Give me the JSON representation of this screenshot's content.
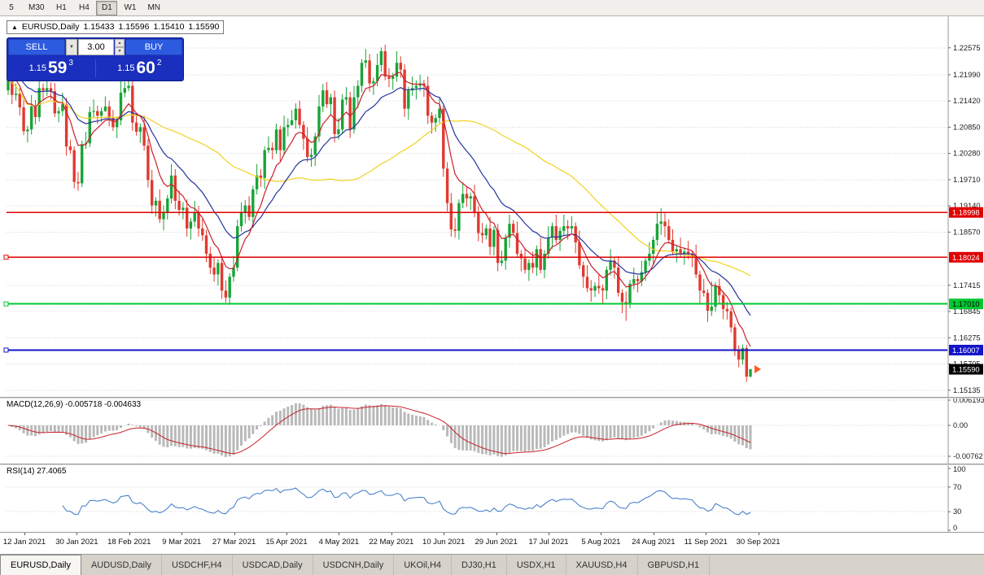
{
  "toolbar": {
    "timeframes": [
      {
        "label": "5",
        "active": false
      },
      {
        "label": "M30",
        "active": false
      },
      {
        "label": "H1",
        "active": false
      },
      {
        "label": "H4",
        "active": false
      },
      {
        "label": "D1",
        "active": true
      },
      {
        "label": "W1",
        "active": false
      },
      {
        "label": "MN",
        "active": false
      }
    ]
  },
  "header": {
    "collapse_arrow": "▲",
    "symbol": "EURUSD,Daily",
    "open": "1.15433",
    "high": "1.15596",
    "low": "1.15410",
    "close": "1.15590"
  },
  "trade_panel": {
    "sell_label": "SELL",
    "buy_label": "BUY",
    "lot_size": "3.00",
    "dropdown_arrow": "▼",
    "spin_up": "▲",
    "spin_down": "▼",
    "sell_price_prefix": "1.15",
    "sell_price_big": "59",
    "sell_price_sup": "3",
    "buy_price_prefix": "1.15",
    "buy_price_big": "60",
    "buy_price_sup": "2"
  },
  "colors": {
    "bull": "#18a437",
    "bear": "#e03a30",
    "grid": "#d4d4d4",
    "axis_text": "#1a1a1a"
  },
  "tabs": [
    {
      "label": "EURUSD,Daily",
      "active": true
    },
    {
      "label": "AUDUSD,Daily",
      "active": false
    },
    {
      "label": "USDCHF,H4",
      "active": false
    },
    {
      "label": "USDCAD,Daily",
      "active": false
    },
    {
      "label": "USDCNH,Daily",
      "active": false
    },
    {
      "label": "UKOil,H4",
      "active": false
    },
    {
      "label": "DJ30,H1",
      "active": false
    },
    {
      "label": "USDX,H1",
      "active": false
    },
    {
      "label": "XAUUSD,H4",
      "active": false
    },
    {
      "label": "GBPUSD,H1",
      "active": false
    }
  ],
  "chart_data": {
    "type": "candlestick",
    "title": "EURUSD,Daily",
    "symbol": "EURUSD",
    "timeframe": "Daily",
    "ylim": [
      1.1499,
      1.2326
    ],
    "y_ticks": [
      "1.22575",
      "1.21990",
      "1.21420",
      "1.20850",
      "1.20280",
      "1.19710",
      "1.19140",
      "1.18570",
      "1.17415",
      "1.16845",
      "1.16275",
      "1.15705",
      "1.15135"
    ],
    "x_labels": [
      "12 Jan 2021",
      "30 Jan 2021",
      "18 Feb 2021",
      "9 Mar 2021",
      "27 Mar 2021",
      "15 Apr 2021",
      "4 May 2021",
      "22 May 2021",
      "10 Jun 2021",
      "29 Jun 2021",
      "17 Jul 2021",
      "5 Aug 2021",
      "24 Aug 2021",
      "11 Sep 2021",
      "30 Sep 2021"
    ],
    "hlines": [
      {
        "label": "1.18998",
        "value": 1.18998,
        "color": "#e00000",
        "width": 1.4,
        "handle": false
      },
      {
        "label": "1.18024",
        "value": 1.18024,
        "color": "#e00000",
        "width": 1.4,
        "handle": true
      },
      {
        "label": "1.17010",
        "value": 1.1701,
        "color": "#00c832",
        "width": 2,
        "handle": true,
        "tag_text": "#000000"
      },
      {
        "label": "1.16007",
        "value": 1.16007,
        "color": "#1414c8",
        "width": 2,
        "handle": true
      }
    ],
    "current_price": {
      "label": "1.15590",
      "value": 1.1559,
      "color": "#000000"
    },
    "marker": {
      "type": "arrow",
      "price": 1.1559,
      "color": "#ff5a26"
    },
    "moving_averages": [
      {
        "name": "ma-slow-yellow",
        "period": 55,
        "method": "sma",
        "color": "#f2d21f"
      },
      {
        "name": "ma-mid-blue",
        "period": 20,
        "method": "ema",
        "color": "#27349c"
      },
      {
        "name": "ma-fast-red",
        "period": 8,
        "method": "ema",
        "color": "#c8202a"
      }
    ],
    "indicator_panes": [
      {
        "name": "MACD",
        "label": "MACD(12,26,9) -0.005718 -0.004633",
        "params": [
          12,
          26,
          9
        ],
        "values": [
          -0.005718,
          -0.004633
        ],
        "axis_labels": [
          "0.006193",
          "0.00",
          "-0.00762"
        ],
        "colors": {
          "histogram": "#b9b9b9",
          "signal": "#c8202a"
        }
      },
      {
        "name": "RSI",
        "label": "RSI(14) 27.4065",
        "period": 14,
        "value": 27.4065,
        "axis_labels": [
          "100",
          "70",
          "30",
          "0"
        ],
        "levels": [
          70,
          30
        ],
        "color": "#3c78c8"
      }
    ],
    "candles": [
      [
        1.2165,
        1.2223,
        1.2155,
        1.2208
      ],
      [
        1.2208,
        1.2218,
        1.2135,
        1.2155
      ],
      [
        1.2155,
        1.218,
        1.2143,
        1.2158
      ],
      [
        1.2158,
        1.217,
        1.211,
        1.2128
      ],
      [
        1.2128,
        1.2146,
        1.2068,
        1.2076
      ],
      [
        1.2076,
        1.2088,
        1.2052,
        1.208
      ],
      [
        1.208,
        1.2155,
        1.2069,
        1.213
      ],
      [
        1.213,
        1.2144,
        1.2091,
        1.2107
      ],
      [
        1.2107,
        1.2185,
        1.2097,
        1.217
      ],
      [
        1.217,
        1.218,
        1.2145,
        1.2165
      ],
      [
        1.2165,
        1.2192,
        1.2153,
        1.217
      ],
      [
        1.217,
        1.2182,
        1.2145,
        1.2163
      ],
      [
        1.2163,
        1.2181,
        1.2107,
        1.2115
      ],
      [
        1.2115,
        1.2128,
        1.2096,
        1.212
      ],
      [
        1.212,
        1.216,
        1.2109,
        1.2135
      ],
      [
        1.2135,
        1.2149,
        1.2023,
        1.2043
      ],
      [
        1.2043,
        1.2058,
        1.2027,
        1.2035
      ],
      [
        1.2035,
        1.2043,
        1.1952,
        1.1966
      ],
      [
        1.1966,
        1.1988,
        1.1947,
        1.1963
      ],
      [
        1.1963,
        1.2056,
        1.1955,
        1.2048
      ],
      [
        1.2048,
        1.2075,
        1.2038,
        1.205
      ],
      [
        1.205,
        1.213,
        1.2042,
        1.2118
      ],
      [
        1.2118,
        1.2145,
        1.2106,
        1.212
      ],
      [
        1.212,
        1.2132,
        1.2092,
        1.211
      ],
      [
        1.211,
        1.2128,
        1.2096,
        1.212
      ],
      [
        1.212,
        1.2152,
        1.2118,
        1.213
      ],
      [
        1.213,
        1.2142,
        1.2087,
        1.2105
      ],
      [
        1.2105,
        1.2123,
        1.2077,
        1.2085
      ],
      [
        1.2085,
        1.2108,
        1.2061,
        1.21
      ],
      [
        1.21,
        1.2185,
        1.2089,
        1.216
      ],
      [
        1.216,
        1.2184,
        1.215,
        1.217
      ],
      [
        1.217,
        1.2197,
        1.2163,
        1.2175
      ],
      [
        1.2175,
        1.2187,
        1.2077,
        1.2095
      ],
      [
        1.2095,
        1.2113,
        1.2067,
        1.2075
      ],
      [
        1.2075,
        1.2093,
        1.2051,
        1.2085
      ],
      [
        1.2085,
        1.211,
        1.2034,
        1.2045
      ],
      [
        1.2045,
        1.2059,
        1.1954,
        1.197
      ],
      [
        1.197,
        1.1992,
        1.1897,
        1.1915
      ],
      [
        1.1915,
        1.1933,
        1.1891,
        1.1925
      ],
      [
        1.1925,
        1.195,
        1.1877,
        1.1885
      ],
      [
        1.1885,
        1.1915,
        1.1861,
        1.19
      ],
      [
        1.19,
        1.1938,
        1.1884,
        1.193
      ],
      [
        1.193,
        1.2005,
        1.1919,
        1.198
      ],
      [
        1.198,
        1.1994,
        1.1907,
        1.1925
      ],
      [
        1.1925,
        1.1947,
        1.1893,
        1.1905
      ],
      [
        1.1905,
        1.1922,
        1.1885,
        1.191
      ],
      [
        1.191,
        1.1928,
        1.1847,
        1.1865
      ],
      [
        1.1865,
        1.1888,
        1.1841,
        1.188
      ],
      [
        1.188,
        1.1925,
        1.1869,
        1.19
      ],
      [
        1.19,
        1.1914,
        1.1847,
        1.1865
      ],
      [
        1.1865,
        1.1887,
        1.1838,
        1.185
      ],
      [
        1.185,
        1.1862,
        1.1792,
        1.181
      ],
      [
        1.181,
        1.1825,
        1.1766,
        1.178
      ],
      [
        1.178,
        1.1802,
        1.1749,
        1.1765
      ],
      [
        1.1765,
        1.1798,
        1.1741,
        1.179
      ],
      [
        1.179,
        1.1805,
        1.1712,
        1.173
      ],
      [
        1.173,
        1.1752,
        1.1704,
        1.1715
      ],
      [
        1.1715,
        1.1768,
        1.1699,
        1.176
      ],
      [
        1.176,
        1.1805,
        1.1749,
        1.178
      ],
      [
        1.178,
        1.1884,
        1.1772,
        1.187
      ],
      [
        1.187,
        1.1922,
        1.1858,
        1.19
      ],
      [
        1.19,
        1.1927,
        1.1876,
        1.1915
      ],
      [
        1.1915,
        1.1935,
        1.1882,
        1.189
      ],
      [
        1.189,
        1.1958,
        1.1866,
        1.195
      ],
      [
        1.195,
        1.2005,
        1.1939,
        1.198
      ],
      [
        1.198,
        1.1994,
        1.1955,
        1.1975
      ],
      [
        1.1975,
        1.2043,
        1.1951,
        1.2035
      ],
      [
        1.2035,
        1.2065,
        1.2029,
        1.204
      ],
      [
        1.204,
        1.2052,
        1.2015,
        1.2035
      ],
      [
        1.2035,
        1.2093,
        1.2027,
        1.208
      ],
      [
        1.208,
        1.2088,
        1.2011,
        1.2035
      ],
      [
        1.2035,
        1.211,
        1.2024,
        1.2085
      ],
      [
        1.2085,
        1.2104,
        1.2065,
        1.209
      ],
      [
        1.209,
        1.2122,
        1.2088,
        1.21
      ],
      [
        1.21,
        1.2137,
        1.2082,
        1.2125
      ],
      [
        1.2125,
        1.2143,
        1.2082,
        1.209
      ],
      [
        1.209,
        1.2098,
        1.2036,
        1.206
      ],
      [
        1.206,
        1.2085,
        1.2009,
        1.202
      ],
      [
        1.202,
        1.2039,
        1.1999,
        1.2025
      ],
      [
        1.2025,
        1.2073,
        1.2001,
        1.2065
      ],
      [
        1.2065,
        1.2155,
        1.2053,
        1.213
      ],
      [
        1.213,
        1.2179,
        1.2118,
        1.2165
      ],
      [
        1.2165,
        1.2183,
        1.2127,
        1.2135
      ],
      [
        1.2135,
        1.2158,
        1.2111,
        1.215
      ],
      [
        1.215,
        1.2165,
        1.2052,
        1.207
      ],
      [
        1.207,
        1.2105,
        1.2058,
        1.208
      ],
      [
        1.208,
        1.2157,
        1.207,
        1.2145
      ],
      [
        1.2145,
        1.2172,
        1.2133,
        1.215
      ],
      [
        1.215,
        1.2162,
        1.2062,
        1.208
      ],
      [
        1.208,
        1.2175,
        1.2071,
        1.215
      ],
      [
        1.215,
        1.2187,
        1.2126,
        1.2175
      ],
      [
        1.2175,
        1.2233,
        1.2161,
        1.2225
      ],
      [
        1.2225,
        1.2255,
        1.2214,
        1.223
      ],
      [
        1.223,
        1.2244,
        1.2162,
        1.218
      ],
      [
        1.218,
        1.2193,
        1.2155,
        1.2185
      ],
      [
        1.2185,
        1.2245,
        1.2174,
        1.222
      ],
      [
        1.222,
        1.2258,
        1.2206,
        1.225
      ],
      [
        1.225,
        1.2264,
        1.2187,
        1.2195
      ],
      [
        1.2195,
        1.2213,
        1.2172,
        1.219
      ],
      [
        1.219,
        1.2203,
        1.2166,
        1.2195
      ],
      [
        1.2195,
        1.225,
        1.2184,
        1.2225
      ],
      [
        1.2225,
        1.2239,
        1.2192,
        1.221
      ],
      [
        1.221,
        1.2222,
        1.2107,
        1.2125
      ],
      [
        1.2125,
        1.2173,
        1.2101,
        1.2165
      ],
      [
        1.2165,
        1.2195,
        1.2153,
        1.217
      ],
      [
        1.217,
        1.2187,
        1.2145,
        1.2175
      ],
      [
        1.2175,
        1.2199,
        1.2163,
        1.218
      ],
      [
        1.218,
        1.2188,
        1.2151,
        1.2175
      ],
      [
        1.2175,
        1.2195,
        1.2092,
        1.211
      ],
      [
        1.211,
        1.2118,
        1.2071,
        1.2095
      ],
      [
        1.2095,
        1.2113,
        1.2075,
        1.2105
      ],
      [
        1.2105,
        1.2148,
        1.2094,
        1.2125
      ],
      [
        1.2125,
        1.2132,
        1.1977,
        1.1995
      ],
      [
        1.1995,
        1.2009,
        1.1902,
        1.192
      ],
      [
        1.192,
        1.1942,
        1.1847,
        1.1863
      ],
      [
        1.1863,
        1.1888,
        1.1845,
        1.186
      ],
      [
        1.186,
        1.1928,
        1.1841,
        1.192
      ],
      [
        1.192,
        1.1965,
        1.1909,
        1.194
      ],
      [
        1.194,
        1.1954,
        1.1912,
        1.193
      ],
      [
        1.193,
        1.1943,
        1.1905,
        1.1935
      ],
      [
        1.1935,
        1.196,
        1.1889,
        1.19
      ],
      [
        1.19,
        1.1914,
        1.1837,
        1.1855
      ],
      [
        1.1855,
        1.1877,
        1.1833,
        1.185
      ],
      [
        1.185,
        1.1873,
        1.1841,
        1.1865
      ],
      [
        1.1865,
        1.189,
        1.1807,
        1.1825
      ],
      [
        1.1825,
        1.187,
        1.1806,
        1.1862
      ],
      [
        1.1862,
        1.1875,
        1.1772,
        1.179
      ],
      [
        1.179,
        1.1817,
        1.1783,
        1.1795
      ],
      [
        1.1795,
        1.1853,
        1.1775,
        1.1845
      ],
      [
        1.1845,
        1.1895,
        1.1823,
        1.1875
      ],
      [
        1.1875,
        1.1883,
        1.1851,
        1.1855
      ],
      [
        1.1855,
        1.188,
        1.1802,
        1.181
      ],
      [
        1.181,
        1.1818,
        1.1772,
        1.18
      ],
      [
        1.18,
        1.1822,
        1.1767,
        1.1775
      ],
      [
        1.1775,
        1.1798,
        1.1751,
        1.179
      ],
      [
        1.179,
        1.1815,
        1.1768,
        1.178
      ],
      [
        1.178,
        1.1828,
        1.1762,
        1.182
      ],
      [
        1.182,
        1.1845,
        1.1767,
        1.1775
      ],
      [
        1.1775,
        1.1818,
        1.1757,
        1.181
      ],
      [
        1.181,
        1.187,
        1.1799,
        1.1845
      ],
      [
        1.1845,
        1.1878,
        1.1821,
        1.187
      ],
      [
        1.187,
        1.1895,
        1.1832,
        1.184
      ],
      [
        1.184,
        1.1868,
        1.1816,
        1.186
      ],
      [
        1.186,
        1.1895,
        1.1848,
        1.187
      ],
      [
        1.187,
        1.1883,
        1.1841,
        1.1865
      ],
      [
        1.1865,
        1.1892,
        1.1853,
        1.187
      ],
      [
        1.187,
        1.1878,
        1.1811,
        1.1835
      ],
      [
        1.1835,
        1.186,
        1.1777,
        1.1785
      ],
      [
        1.1785,
        1.1793,
        1.1736,
        1.176
      ],
      [
        1.176,
        1.1785,
        1.1727,
        1.1735
      ],
      [
        1.1735,
        1.1753,
        1.1706,
        1.173
      ],
      [
        1.173,
        1.1748,
        1.1716,
        1.174
      ],
      [
        1.174,
        1.1765,
        1.1723,
        1.1735
      ],
      [
        1.1735,
        1.1743,
        1.1702,
        1.173
      ],
      [
        1.173,
        1.1783,
        1.1711,
        1.1775
      ],
      [
        1.1775,
        1.182,
        1.1763,
        1.1795
      ],
      [
        1.1795,
        1.1803,
        1.1756,
        1.178
      ],
      [
        1.178,
        1.1805,
        1.1717,
        1.1725
      ],
      [
        1.1725,
        1.1733,
        1.1681,
        1.1705
      ],
      [
        1.1705,
        1.1728,
        1.1664,
        1.17
      ],
      [
        1.17,
        1.1753,
        1.1691,
        1.1745
      ],
      [
        1.1745,
        1.178,
        1.1733,
        1.1755
      ],
      [
        1.1755,
        1.1763,
        1.1726,
        1.175
      ],
      [
        1.175,
        1.1795,
        1.1739,
        1.177
      ],
      [
        1.177,
        1.1803,
        1.1751,
        1.1795
      ],
      [
        1.1795,
        1.1835,
        1.1783,
        1.181
      ],
      [
        1.181,
        1.1848,
        1.1786,
        1.184
      ],
      [
        1.184,
        1.19,
        1.1828,
        1.1875
      ],
      [
        1.1875,
        1.1909,
        1.1851,
        1.188
      ],
      [
        1.188,
        1.1898,
        1.1846,
        1.187
      ],
      [
        1.187,
        1.1885,
        1.1832,
        1.184
      ],
      [
        1.184,
        1.1863,
        1.1807,
        1.1815
      ],
      [
        1.1815,
        1.1828,
        1.1791,
        1.182
      ],
      [
        1.182,
        1.1845,
        1.1802,
        1.181
      ],
      [
        1.181,
        1.1823,
        1.1786,
        1.1815
      ],
      [
        1.1815,
        1.1838,
        1.1798,
        1.181
      ],
      [
        1.181,
        1.1818,
        1.1781,
        1.1805
      ],
      [
        1.1805,
        1.183,
        1.1757,
        1.1765
      ],
      [
        1.1765,
        1.1773,
        1.1701,
        1.173
      ],
      [
        1.173,
        1.1755,
        1.1717,
        1.1725
      ],
      [
        1.1725,
        1.1733,
        1.1662,
        1.1686
      ],
      [
        1.1686,
        1.175,
        1.1675,
        1.1695
      ],
      [
        1.1695,
        1.1748,
        1.1684,
        1.174
      ],
      [
        1.174,
        1.1756,
        1.1702,
        1.172
      ],
      [
        1.172,
        1.1728,
        1.1668,
        1.169
      ],
      [
        1.169,
        1.1705,
        1.1667,
        1.1685
      ],
      [
        1.1685,
        1.1693,
        1.1639,
        1.165
      ],
      [
        1.165,
        1.1658,
        1.1588,
        1.16
      ],
      [
        1.16,
        1.1611,
        1.1563,
        1.158
      ],
      [
        1.158,
        1.1613,
        1.1569,
        1.1605
      ],
      [
        1.1605,
        1.1612,
        1.1532,
        1.1543
      ],
      [
        1.15433,
        1.15596,
        1.1541,
        1.1559
      ]
    ]
  }
}
